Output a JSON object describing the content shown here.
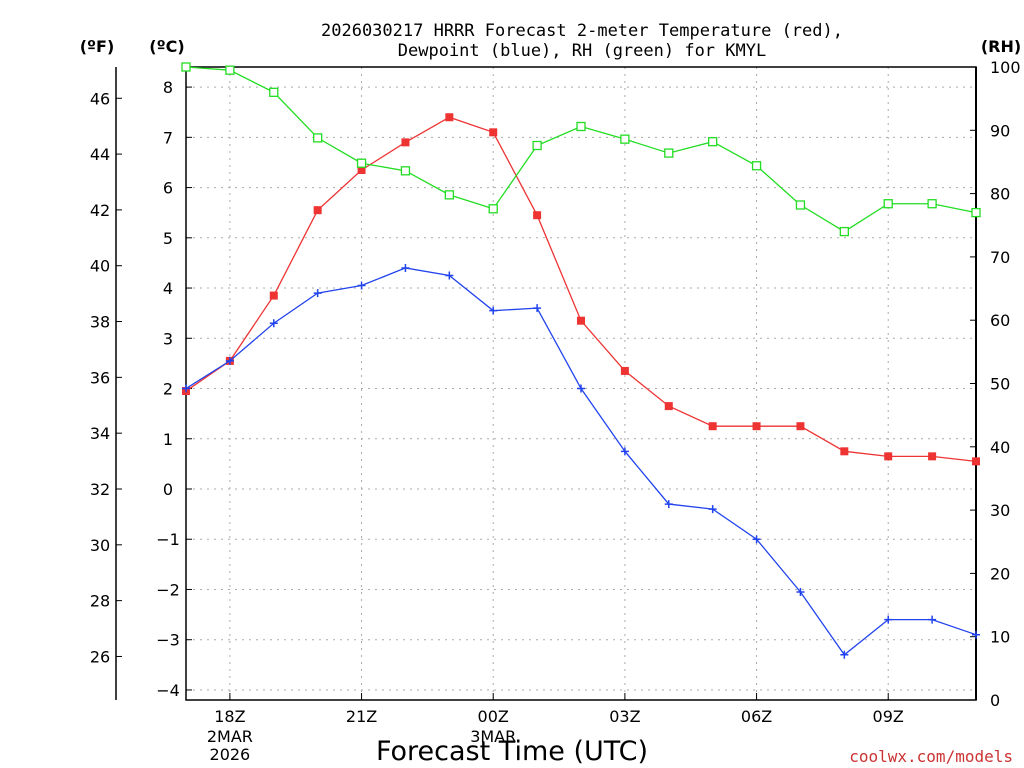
{
  "chart_data": {
    "type": "line",
    "title": [
      "2026030217 HRRR Forecast 2-meter Temperature (red),",
      "Dewpoint (blue), RH (green) for KMYL"
    ],
    "units": {
      "left_f": "(ºF)",
      "left_c": "(ºC)",
      "right_rh": "(RH)"
    },
    "xlabel": "Forecast Time (UTC)",
    "credit": "coolwx.com/models",
    "x_hours": [
      17,
      18,
      19,
      20,
      21,
      22,
      23,
      24,
      25,
      26,
      27,
      28,
      29,
      30,
      31,
      32,
      33,
      34,
      35
    ],
    "xlim": [
      17,
      35
    ],
    "x_ticks": [
      {
        "hour": 18,
        "label": "18Z",
        "sub": [
          "2MAR",
          "2026"
        ]
      },
      {
        "hour": 21,
        "label": "21Z",
        "sub": []
      },
      {
        "hour": 24,
        "label": "00Z",
        "sub": [
          "3MAR"
        ]
      },
      {
        "hour": 27,
        "label": "03Z",
        "sub": []
      },
      {
        "hour": 30,
        "label": "06Z",
        "sub": []
      },
      {
        "hour": 33,
        "label": "09Z",
        "sub": []
      }
    ],
    "y_celsius": {
      "range": [
        -4.2,
        8.4
      ],
      "ticks": [
        8,
        7,
        6,
        5,
        4,
        3,
        2,
        1,
        0,
        -1,
        -2,
        -3,
        -4
      ]
    },
    "y_fahrenheit": {
      "ticks": [
        46,
        44,
        42,
        40,
        38,
        36,
        34,
        32,
        30,
        28,
        26
      ]
    },
    "y_rh": {
      "range": [
        0,
        100
      ],
      "ticks": [
        100,
        90,
        80,
        70,
        60,
        50,
        40,
        30,
        20,
        10,
        0
      ]
    },
    "series": [
      {
        "name": "Temperature",
        "axis": "celsius",
        "color": "#ee3333",
        "marker": "filled-square",
        "values": [
          1.95,
          2.55,
          3.85,
          5.55,
          6.35,
          6.9,
          7.4,
          7.1,
          5.45,
          3.35,
          2.35,
          1.65,
          1.25,
          1.25,
          1.25,
          0.75,
          0.65,
          0.65,
          0.55
        ]
      },
      {
        "name": "Dewpoint",
        "axis": "celsius",
        "color": "#2244ee",
        "marker": "plus",
        "values": [
          2.0,
          2.55,
          3.3,
          3.9,
          4.05,
          4.4,
          4.25,
          3.55,
          3.6,
          2.0,
          0.75,
          -0.3,
          -0.4,
          -1.0,
          -2.05,
          -3.3,
          -2.6,
          -2.6,
          -2.9
        ]
      },
      {
        "name": "RH",
        "axis": "rh",
        "color": "#22dd22",
        "marker": "open-square",
        "values": [
          100,
          99.5,
          96,
          88.8,
          84.8,
          83.6,
          79.8,
          77.6,
          87.6,
          90.6,
          88.6,
          86.4,
          88.2,
          84.4,
          78.2,
          74,
          78.4,
          78.4,
          77
        ]
      }
    ]
  }
}
